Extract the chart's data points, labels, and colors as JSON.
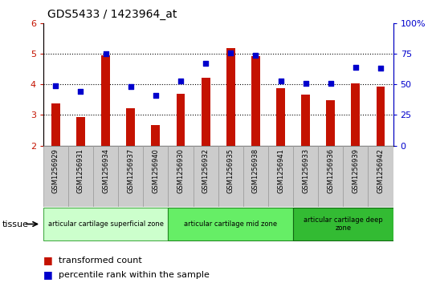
{
  "title": "GDS5433 / 1423964_at",
  "samples": [
    "GSM1256929",
    "GSM1256931",
    "GSM1256934",
    "GSM1256937",
    "GSM1256940",
    "GSM1256930",
    "GSM1256932",
    "GSM1256935",
    "GSM1256938",
    "GSM1256941",
    "GSM1256933",
    "GSM1256936",
    "GSM1256939",
    "GSM1256942"
  ],
  "transformed_count": [
    3.38,
    2.92,
    4.95,
    3.22,
    2.66,
    3.7,
    4.22,
    5.18,
    4.93,
    3.87,
    3.67,
    3.47,
    4.03,
    3.93
  ],
  "percentile_rank": [
    49,
    44,
    75,
    48,
    41,
    53,
    67,
    76,
    74,
    53,
    51,
    51,
    64,
    63
  ],
  "ylim_left": [
    2,
    6
  ],
  "ylim_right": [
    0,
    100
  ],
  "yticks_left": [
    2,
    3,
    4,
    5,
    6
  ],
  "yticks_right": [
    0,
    25,
    50,
    75,
    100
  ],
  "bar_color": "#c41200",
  "scatter_color": "#0000cc",
  "plot_bg": "#ffffff",
  "groups": [
    {
      "label": "articular cartilage superficial zone",
      "start": 0,
      "end": 5,
      "color": "#ccffcc"
    },
    {
      "label": "articular cartilage mid zone",
      "start": 5,
      "end": 10,
      "color": "#66ee66"
    },
    {
      "label": "articular cartilage deep\nzone",
      "start": 10,
      "end": 14,
      "color": "#33bb33"
    }
  ],
  "legend_items": [
    {
      "label": "transformed count",
      "color": "#c41200"
    },
    {
      "label": "percentile rank within the sample",
      "color": "#0000cc"
    }
  ],
  "tissue_label": "tissue",
  "xtick_bg": "#cccccc",
  "xtick_border": "#999999"
}
